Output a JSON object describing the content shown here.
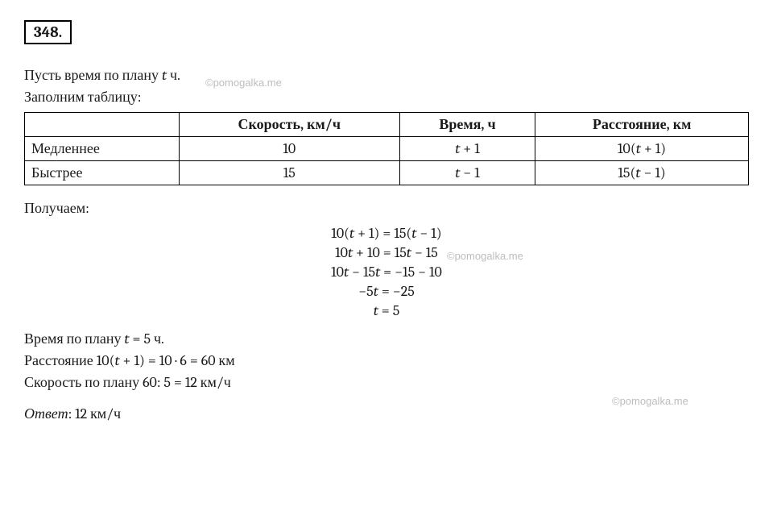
{
  "problem_number": "348.",
  "intro_line": "Пусть время по плану t ч.",
  "fill_table_line": "Заполним таблицу:",
  "table": {
    "columns": [
      "",
      "Скорость, км/ч",
      "Время, ч",
      "Расстояние, км"
    ],
    "rows": [
      [
        "Медленнее",
        "10",
        "t + 1",
        "10(t + 1)"
      ],
      [
        "Быстрее",
        "15",
        "t − 1",
        "15(t − 1)"
      ]
    ]
  },
  "result_label": "Получаем:",
  "equations": [
    "10(t + 1) = 15(t − 1)",
    "10t + 10 = 15t − 15",
    "10t − 15t = −15 − 10",
    "−5t = −25",
    "t = 5"
  ],
  "post_lines": [
    "Время по плану t = 5 ч.",
    "Расстояние 10(t + 1) = 10 · 6 = 60 км",
    "Скорость по плану 60: 5 = 12 км/ч"
  ],
  "answer_label": "Ответ",
  "answer_value": ": 12 км/ч",
  "watermark_text": "©pomogalka.me",
  "colors": {
    "text": "#1a1a1a",
    "border": "#000000",
    "watermark": "#bdbdbd",
    "background": "#ffffff"
  },
  "fonts": {
    "body_size_pt": 14,
    "family": "Cambria / Georgia / serif"
  }
}
